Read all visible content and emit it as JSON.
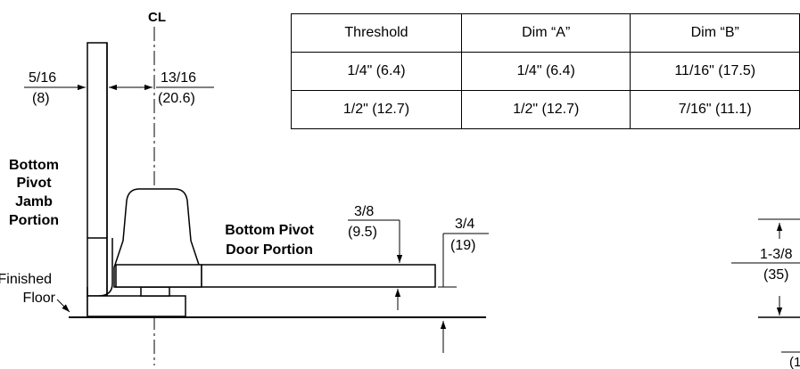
{
  "centerline_symbol": "CL",
  "table": {
    "headers": [
      "Threshold",
      "Dim “A”",
      "Dim “B”"
    ],
    "rows": [
      [
        "1/4\" (6.4)",
        "1/4\" (6.4)",
        "11/16\" (17.5)"
      ],
      [
        "1/2\" (12.7)",
        "1/2\" (12.7)",
        "7/16\" (11.1)"
      ]
    ]
  },
  "dims": {
    "left_top": "5/16",
    "left_bottom": "(8)",
    "center_top": "13/16",
    "center_bottom": "(20.6)",
    "a_top": "3/8",
    "a_bottom": "(9.5)",
    "b_top": "3/4",
    "b_bottom": "(19)",
    "right_top": "1-3/8",
    "right_bottom": "(35)",
    "cut_off_fragment": "(1"
  },
  "labels": {
    "jamb": [
      "Bottom",
      "Pivot",
      "Jamb",
      "Portion"
    ],
    "door": [
      "Bottom Pivot",
      "Door Portion"
    ],
    "floor": [
      "Finished",
      "Floor"
    ]
  }
}
